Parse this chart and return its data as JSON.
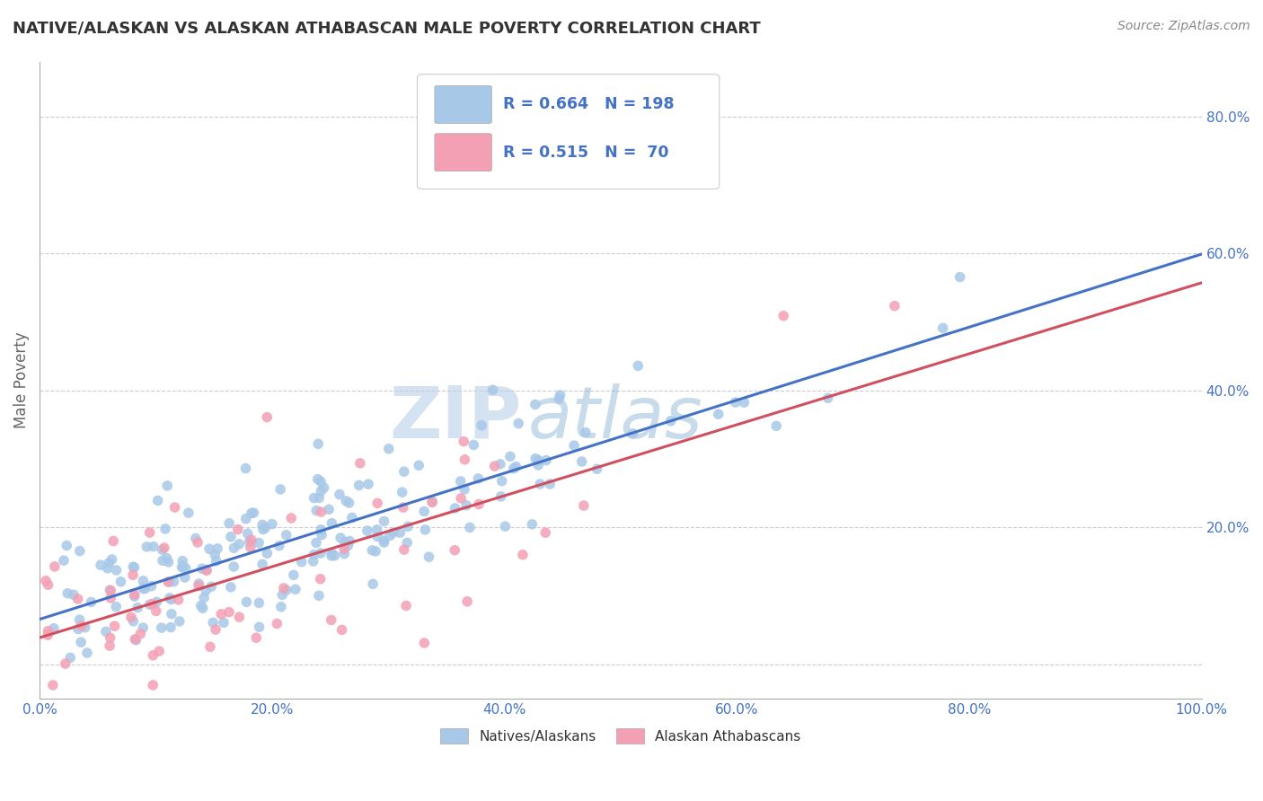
{
  "title": "NATIVE/ALASKAN VS ALASKAN ATHABASCAN MALE POVERTY CORRELATION CHART",
  "source": "Source: ZipAtlas.com",
  "ylabel": "Male Poverty",
  "xlim": [
    0.0,
    1.0
  ],
  "ylim": [
    -0.05,
    0.88
  ],
  "xticks": [
    0.0,
    0.2,
    0.4,
    0.6,
    0.8,
    1.0
  ],
  "yticks": [
    0.0,
    0.2,
    0.4,
    0.6,
    0.8
  ],
  "xticklabels": [
    "0.0%",
    "20.0%",
    "40.0%",
    "60.0%",
    "80.0%",
    "100.0%"
  ],
  "yticklabels": [
    "",
    "20.0%",
    "40.0%",
    "60.0%",
    "80.0%"
  ],
  "blue_R": 0.664,
  "blue_N": 198,
  "pink_R": 0.515,
  "pink_N": 70,
  "blue_color": "#a8c8e8",
  "pink_color": "#f4a0b4",
  "blue_line_color": "#4472c4",
  "pink_line_color": "#d05060",
  "watermark_zip": "ZIP",
  "watermark_atlas": "atlas",
  "legend_label_blue": "Natives/Alaskans",
  "legend_label_pink": "Alaskan Athabascans",
  "background_color": "#ffffff",
  "grid_color": "#cccccc",
  "title_color": "#333333",
  "axis_label_color": "#666666",
  "tick_color": "#4472c4",
  "blue_seed": 42,
  "pink_seed": 7
}
